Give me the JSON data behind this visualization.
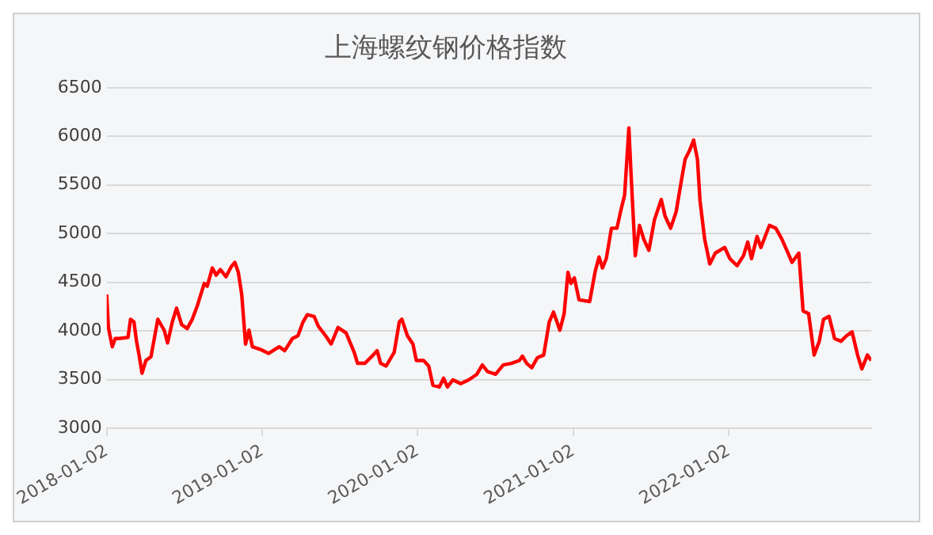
{
  "chart_data": {
    "type": "line",
    "title": "上海螺纹钢价格指数",
    "x": [
      "2018-01-02",
      "2018-01-06",
      "2018-01-15",
      "2018-01-22",
      "2018-01-31",
      "2018-02-21",
      "2018-02-27",
      "2018-03-07",
      "2018-03-13",
      "2018-03-19",
      "2018-03-26",
      "2018-04-04",
      "2018-04-16",
      "2018-05-02",
      "2018-05-17",
      "2018-05-25",
      "2018-06-05",
      "2018-06-15",
      "2018-06-27",
      "2018-07-10",
      "2018-07-22",
      "2018-08-03",
      "2018-08-19",
      "2018-08-26",
      "2018-09-07",
      "2018-09-16",
      "2018-09-26",
      "2018-10-09",
      "2018-10-21",
      "2018-10-30",
      "2018-11-07",
      "2018-11-15",
      "2018-11-24",
      "2018-12-02",
      "2018-12-10",
      "2018-12-29",
      "2019-01-17",
      "2019-02-11",
      "2019-02-24",
      "2019-03-14",
      "2019-03-27",
      "2019-04-08",
      "2019-04-18",
      "2019-05-04",
      "2019-05-14",
      "2019-05-31",
      "2019-06-13",
      "2019-06-29",
      "2019-07-18",
      "2019-08-06",
      "2019-08-14",
      "2019-08-31",
      "2019-09-16",
      "2019-09-29",
      "2019-10-07",
      "2019-10-20",
      "2019-11-08",
      "2019-11-20",
      "2019-11-26",
      "2019-12-09",
      "2019-12-22",
      "2019-12-30",
      "2020-01-16",
      "2020-01-28",
      "2020-02-07",
      "2020-02-22",
      "2020-03-03",
      "2020-03-12",
      "2020-03-25",
      "2020-04-12",
      "2020-05-01",
      "2020-05-20",
      "2020-06-02",
      "2020-06-14",
      "2020-07-03",
      "2020-07-21",
      "2020-08-09",
      "2020-08-28",
      "2020-09-04",
      "2020-09-14",
      "2020-09-26",
      "2020-10-09",
      "2020-10-24",
      "2020-11-06",
      "2020-11-16",
      "2020-12-01",
      "2020-12-11",
      "2020-12-20",
      "2020-12-27",
      "2021-01-04",
      "2021-01-15",
      "2021-02-09",
      "2021-02-22",
      "2021-03-03",
      "2021-03-11",
      "2021-03-20",
      "2021-04-01",
      "2021-04-14",
      "2021-04-23",
      "2021-05-02",
      "2021-05-12",
      "2021-05-17",
      "2021-05-27",
      "2021-06-06",
      "2021-06-16",
      "2021-06-28",
      "2021-07-11",
      "2021-07-27",
      "2021-08-05",
      "2021-08-18",
      "2021-08-31",
      "2021-09-12",
      "2021-09-21",
      "2021-10-01",
      "2021-10-11",
      "2021-10-20",
      "2021-10-26",
      "2021-11-06",
      "2021-11-18",
      "2021-12-01",
      "2021-12-23",
      "2022-01-04",
      "2022-01-21",
      "2022-02-05",
      "2022-02-15",
      "2022-02-24",
      "2022-03-09",
      "2022-03-18",
      "2022-04-07",
      "2022-04-22",
      "2022-05-05",
      "2022-05-18",
      "2022-05-30",
      "2022-06-15",
      "2022-06-25",
      "2022-07-08",
      "2022-07-21",
      "2022-08-02",
      "2022-08-12",
      "2022-08-25",
      "2022-09-07",
      "2022-09-22",
      "2022-10-05",
      "2022-10-18",
      "2022-10-31",
      "2022-11-10",
      "2022-11-23",
      "2022-12-02"
    ],
    "series": [
      {
        "color": "#ff0000",
        "values": [
          4376,
          4036,
          3838,
          3923,
          3923,
          3934,
          4121,
          4093,
          3895,
          3753,
          3566,
          3697,
          3736,
          4121,
          4008,
          3877,
          4093,
          4235,
          4065,
          4025,
          4121,
          4263,
          4489,
          4461,
          4648,
          4574,
          4631,
          4557,
          4659,
          4705,
          4603,
          4376,
          3866,
          4008,
          3838,
          3810,
          3770,
          3838,
          3798,
          3923,
          3951,
          4093,
          4167,
          4150,
          4048,
          3951,
          3866,
          4036,
          3980,
          3781,
          3668,
          3668,
          3736,
          3798,
          3668,
          3640,
          3781,
          4093,
          4121,
          3951,
          3866,
          3697,
          3697,
          3640,
          3442,
          3425,
          3515,
          3425,
          3498,
          3459,
          3498,
          3555,
          3651,
          3583,
          3555,
          3651,
          3668,
          3697,
          3742,
          3668,
          3623,
          3725,
          3753,
          4093,
          4195,
          4008,
          4178,
          4603,
          4489,
          4546,
          4320,
          4303,
          4614,
          4761,
          4648,
          4744,
          5056,
          5056,
          5237,
          5396,
          6087,
          5622,
          4773,
          5085,
          4942,
          4829,
          5141,
          5351,
          5181,
          5056,
          5226,
          5538,
          5764,
          5849,
          5962,
          5764,
          5340,
          4942,
          4688,
          4801,
          4858,
          4744,
          4671,
          4773,
          4914,
          4744,
          4971,
          4858,
          5085,
          5056,
          4954,
          4829,
          4705,
          4801,
          4206,
          4178,
          3753,
          3895,
          4121,
          4150,
          3923,
          3895,
          3951,
          3991,
          3753,
          3611,
          3753,
          3697
        ]
      }
    ],
    "xlim": [
      "2018-01-02",
      "2022-12-02"
    ],
    "xticks": [
      "2018-01-02",
      "2019-01-02",
      "2020-01-02",
      "2021-01-02",
      "2022-01-02"
    ],
    "ylim": [
      3000,
      6500
    ],
    "yticks": [
      3000,
      3500,
      4000,
      4500,
      5000,
      5500,
      6000,
      6500
    ],
    "grid": "y",
    "legend": false,
    "marker": "none",
    "line_style": "solid"
  }
}
